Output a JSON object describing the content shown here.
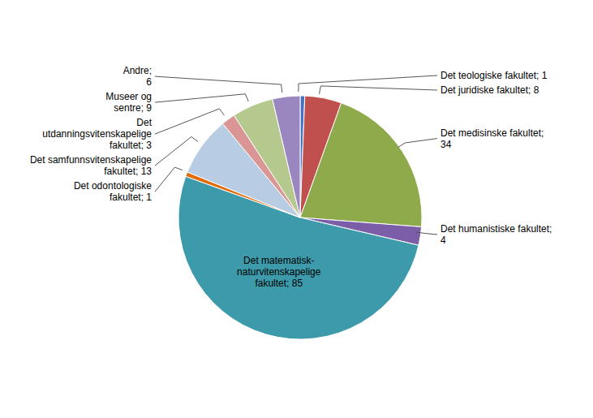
{
  "chart_data": {
    "type": "pie",
    "categories": [
      "Det teologiske fakultet; 1",
      "Det juridiske fakultet; 8",
      "Det medisinske fakultet;\n34",
      "Det humanistiske fakultet;\n4",
      "Det matematisk-\nnaturvitenskapelige\nfakultet; 85",
      "Det odontologiske\nfakultet; 1",
      "Det samfunnsvitenskapelige\nfakultet; 13",
      "Det\nutdanningsvitenskapelige\nfakultet; 3",
      "Museer og\nsentre; 9",
      "Andre;\n6"
    ],
    "values": [
      1,
      8,
      34,
      4,
      85,
      1,
      13,
      3,
      9,
      6
    ],
    "colors": [
      "#4472c4",
      "#c0504d",
      "#8faa4b",
      "#7b5ea7",
      "#3d9aaa",
      "#e36c09",
      "#b8cce4",
      "#d99694",
      "#b5c98e",
      "#9b87c0"
    ]
  }
}
